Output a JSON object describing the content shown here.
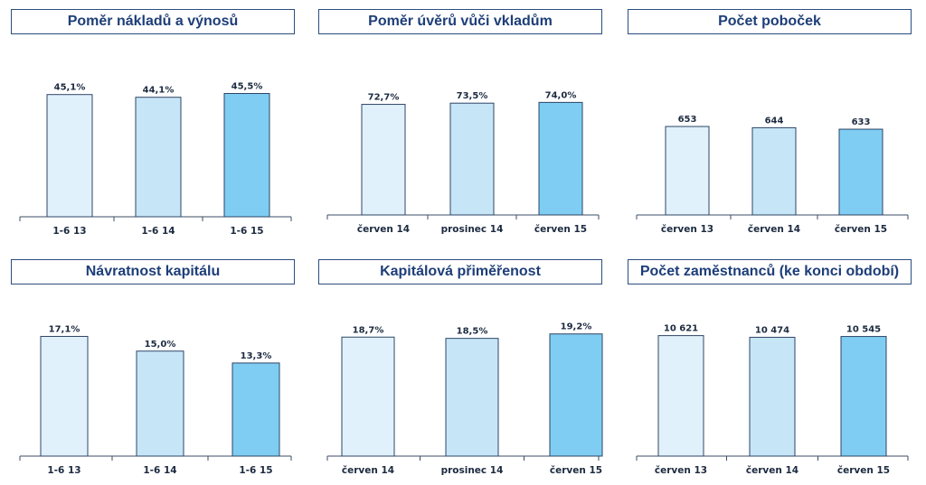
{
  "chart_data": [
    {
      "type": "bar",
      "title": "Poměr nákladů a výnosů",
      "categories": [
        "1-6 13",
        "1-6 14",
        "1-6 15"
      ],
      "values": [
        45.1,
        44.1,
        45.5
      ],
      "value_labels": [
        "45,1%",
        "44,1%",
        "45,5%"
      ],
      "colors": [
        "#e1f1fb",
        "#c6e6f8",
        "#7fcdf2"
      ]
    },
    {
      "type": "bar",
      "title": "Poměr úvěrů vůči vkladům",
      "categories": [
        "červen 14",
        "prosinec 14",
        "červen 15"
      ],
      "values": [
        72.7,
        73.5,
        74.0
      ],
      "value_labels": [
        "72,7%",
        "73,5%",
        "74,0%"
      ],
      "colors": [
        "#e1f1fb",
        "#c6e6f8",
        "#7fcdf2"
      ]
    },
    {
      "type": "bar",
      "title": "Počet poboček",
      "categories": [
        "červen 13",
        "červen 14",
        "červen 15"
      ],
      "values": [
        653,
        644,
        633
      ],
      "value_labels": [
        "653",
        "644",
        "633"
      ],
      "colors": [
        "#e1f1fb",
        "#c6e6f8",
        "#7fcdf2"
      ]
    },
    {
      "type": "bar",
      "title": "Návratnost kapitálu",
      "categories": [
        "1-6 13",
        "1-6 14",
        "1-6 15"
      ],
      "values": [
        17.1,
        15.0,
        13.3
      ],
      "value_labels": [
        "17,1%",
        "15,0%",
        "13,3%"
      ],
      "colors": [
        "#e1f1fb",
        "#c6e6f8",
        "#7fcdf2"
      ]
    },
    {
      "type": "bar",
      "title": "Kapitálová přiměřenost",
      "categories": [
        "červen 14",
        "prosinec 14",
        "červen 15"
      ],
      "values": [
        18.7,
        18.5,
        19.2
      ],
      "value_labels": [
        "18,7%",
        "18,5%",
        "19,2%"
      ],
      "colors": [
        "#e1f1fb",
        "#c6e6f8",
        "#7fcdf2"
      ]
    },
    {
      "type": "bar",
      "title": "Počet zaměstnanců (ke konci období)",
      "categories": [
        "červen 13",
        "červen 14",
        "červen 15"
      ],
      "values": [
        10621,
        10474,
        10545
      ],
      "value_labels": [
        "10 621",
        "10 474",
        "10 545"
      ],
      "colors": [
        "#e1f1fb",
        "#c6e6f8",
        "#7fcdf2"
      ]
    }
  ]
}
